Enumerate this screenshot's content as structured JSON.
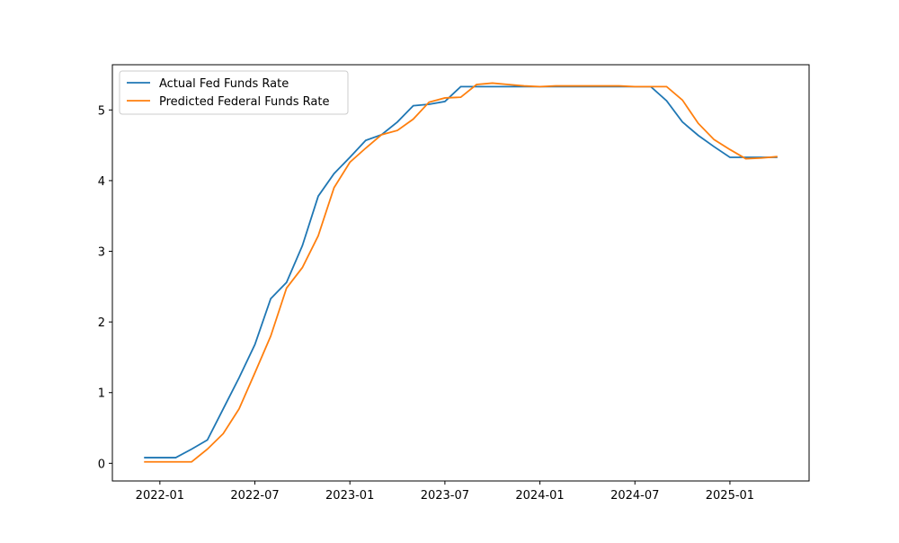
{
  "chart_data": {
    "type": "line",
    "x": [
      "2021-12",
      "2022-01",
      "2022-02",
      "2022-03",
      "2022-04",
      "2022-05",
      "2022-06",
      "2022-07",
      "2022-08",
      "2022-09",
      "2022-10",
      "2022-11",
      "2022-12",
      "2023-01",
      "2023-02",
      "2023-03",
      "2023-04",
      "2023-05",
      "2023-06",
      "2023-07",
      "2023-08",
      "2023-09",
      "2023-10",
      "2023-11",
      "2023-12",
      "2024-01",
      "2024-02",
      "2024-03",
      "2024-04",
      "2024-05",
      "2024-06",
      "2024-07",
      "2024-08",
      "2024-09",
      "2024-10",
      "2024-11",
      "2024-12",
      "2025-01",
      "2025-02",
      "2025-03",
      "2025-04"
    ],
    "series": [
      {
        "name": "Actual Fed Funds Rate",
        "color": "#1f77b4",
        "values": [
          0.08,
          0.08,
          0.08,
          0.2,
          0.33,
          0.77,
          1.21,
          1.68,
          2.33,
          2.56,
          3.08,
          3.78,
          4.1,
          4.33,
          4.57,
          4.65,
          4.83,
          5.06,
          5.08,
          5.12,
          5.33,
          5.33,
          5.33,
          5.33,
          5.33,
          5.33,
          5.33,
          5.33,
          5.33,
          5.33,
          5.33,
          5.33,
          5.33,
          5.13,
          4.83,
          4.64,
          4.48,
          4.33,
          4.33,
          4.33,
          4.33
        ]
      },
      {
        "name": "Predicted Federal Funds Rate",
        "color": "#ff7f0e",
        "values": [
          0.02,
          0.02,
          0.02,
          0.02,
          0.2,
          0.42,
          0.77,
          1.28,
          1.8,
          2.48,
          2.77,
          3.22,
          3.9,
          4.26,
          4.46,
          4.65,
          4.71,
          4.87,
          5.11,
          5.17,
          5.18,
          5.36,
          5.38,
          5.36,
          5.34,
          5.33,
          5.34,
          5.34,
          5.34,
          5.34,
          5.34,
          5.33,
          5.33,
          5.33,
          5.14,
          4.81,
          4.58,
          4.44,
          4.31,
          4.32,
          4.34
        ]
      }
    ],
    "xlim": [
      "2021-10",
      "2025-06"
    ],
    "xticks": [
      "2022-01",
      "2022-07",
      "2023-01",
      "2023-07",
      "2024-01",
      "2024-07",
      "2025-01"
    ],
    "ylim": [
      -0.25,
      5.64
    ],
    "yticks": [
      0,
      1,
      2,
      3,
      4,
      5
    ],
    "legend": "upper left"
  }
}
